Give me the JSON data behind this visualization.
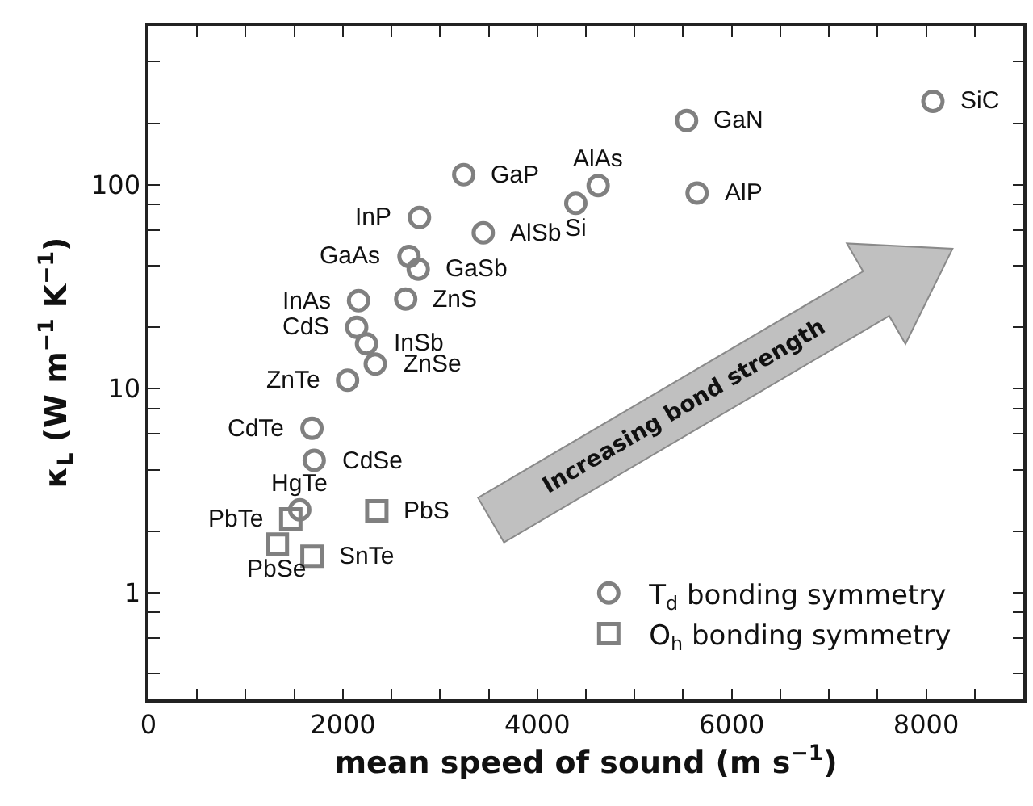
{
  "chart_data": {
    "type": "scatter",
    "xlabel": "mean speed of sound (m s$^{−1}$)",
    "ylabel": "κ$_{L}$ (W m$^{−1}$ K$^{−1}$)",
    "log": "y",
    "grid": false,
    "legend": "bottom right",
    "xlim": [
      0,
      9000
    ],
    "xticks": [
      0,
      {
        "value": 500,
        "label": null
      },
      {
        "value": 1000,
        "label": null
      },
      {
        "value": 1500,
        "label": null
      },
      2000,
      {
        "value": 2500,
        "label": null
      },
      {
        "value": 3000,
        "label": null
      },
      {
        "value": 3500,
        "label": null
      },
      4000,
      {
        "value": 4500,
        "label": null
      },
      {
        "value": 5000,
        "label": null
      },
      {
        "value": 5500,
        "label": null
      },
      6000,
      {
        "value": 6500,
        "label": null
      },
      {
        "value": 7000,
        "label": null
      },
      {
        "value": 7500,
        "label": null
      },
      8000,
      {
        "value": 8500,
        "label": null
      }
    ],
    "ylim": [
      0.3,
      600
    ],
    "yticks": [
      {
        "value": 0.4,
        "label": null
      },
      {
        "value": 0.6,
        "label": null
      },
      {
        "value": 0.8,
        "label": null
      },
      1,
      {
        "value": 2,
        "label": null
      },
      {
        "value": 4,
        "label": null
      },
      {
        "value": 6,
        "label": null
      },
      {
        "value": 8,
        "label": null
      },
      10,
      {
        "value": 20,
        "label": null
      },
      {
        "value": 40,
        "label": null
      },
      {
        "value": 60,
        "label": null
      },
      {
        "value": 80,
        "label": null
      },
      100,
      {
        "value": 200,
        "label": null
      },
      {
        "value": 400,
        "label": null
      }
    ],
    "series": [
      {
        "name": "T$_{d}$ bonding symmetry",
        "color": "#808080",
        "marker": "circle",
        "x": [
          8070,
          5536,
          4626,
          5644,
          3243,
          4396,
          2788,
          3444,
          2680,
          2775,
          2161,
          2646,
          2142,
          2243,
          2333,
          2048,
          1682,
          1705,
          1556
        ],
        "values": [
          256,
          206,
          99,
          91,
          112,
          81,
          69,
          58,
          44.5,
          38.5,
          27,
          27.5,
          20,
          16.6,
          13.2,
          11,
          6.4,
          4.45,
          2.55
        ]
      },
      {
        "name": "O$_{h}$ bonding symmetry",
        "color": "#808080",
        "marker": "square",
        "x": [
          1464,
          2349,
          1326,
          1682
        ],
        "values": [
          2.3,
          2.52,
          1.73,
          1.51
        ]
      }
    ],
    "annotations": [
      "Increasing bond strength",
      {
        "text": "SiC",
        "x": 8070,
        "y": 256
      },
      {
        "text": "GaN",
        "x": 5536,
        "y": 206
      },
      {
        "text": "AlAs",
        "x": 4626,
        "y": 99
      },
      {
        "text": "AlP",
        "x": 5644,
        "y": 91
      },
      {
        "text": "GaP",
        "x": 3243,
        "y": 112
      },
      {
        "text": "Si",
        "x": 4396,
        "y": 81
      },
      {
        "text": "InP",
        "x": 2788,
        "y": 69
      },
      {
        "text": "AlSb",
        "x": 3444,
        "y": 58
      },
      {
        "text": "GaAs",
        "x": 2680,
        "y": 44.5
      },
      {
        "text": "GaSb",
        "x": 2775,
        "y": 38.5
      },
      {
        "text": "InAs",
        "x": 2161,
        "y": 27
      },
      {
        "text": "ZnS",
        "x": 2646,
        "y": 27.5
      },
      {
        "text": "CdS",
        "x": 2142,
        "y": 20
      },
      {
        "text": "InSb",
        "x": 2243,
        "y": 16.6
      },
      {
        "text": "ZnSe",
        "x": 2333,
        "y": 13.2
      },
      {
        "text": "ZnTe",
        "x": 2048,
        "y": 11
      },
      {
        "text": "CdTe",
        "x": 1682,
        "y": 6.4
      },
      {
        "text": "CdSe",
        "x": 1705,
        "y": 4.45
      },
      {
        "text": "HgTe",
        "x": 1556,
        "y": 2.55
      },
      {
        "text": "PbTe",
        "x": 1464,
        "y": 2.3
      },
      {
        "text": "PbS",
        "x": 2349,
        "y": 2.52
      },
      {
        "text": "PbSe",
        "x": 1326,
        "y": 1.73
      },
      {
        "text": "SnTe",
        "x": 1682,
        "y": 1.51
      }
    ]
  }
}
